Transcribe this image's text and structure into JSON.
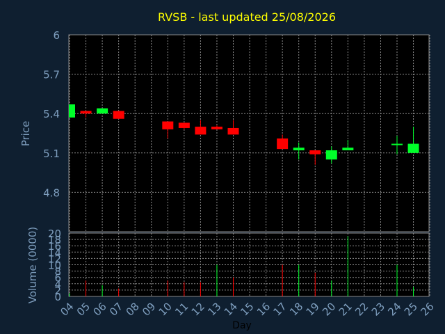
{
  "colors": {
    "background": "#0f1f30",
    "panel": "#000000",
    "grid": "#8a8a8a",
    "title": "#ffff00",
    "axis_text": "#7f9fbf",
    "up": "#00ff2a",
    "down": "#ff0000"
  },
  "chart_data": [
    {
      "type": "candlestick",
      "title": "RVSB - last updated 25/08/2026",
      "ylabel": "Price",
      "ylim": [
        4.5,
        6.0
      ],
      "yticks": [
        "6",
        "5.7",
        "5.4",
        "5.1",
        "4.8"
      ],
      "ytick_values": [
        6.0,
        5.7,
        5.4,
        5.1,
        4.8
      ],
      "grid": true,
      "x": [
        "04",
        "05",
        "06",
        "07",
        "10",
        "11",
        "12",
        "13",
        "14",
        "17",
        "18",
        "19",
        "20",
        "21",
        "24",
        "25"
      ],
      "open": [
        5.37,
        5.42,
        5.4,
        5.42,
        5.34,
        5.33,
        5.3,
        5.3,
        5.29,
        5.21,
        5.12,
        5.12,
        5.05,
        5.12,
        5.16,
        5.1
      ],
      "close": [
        5.47,
        5.4,
        5.44,
        5.36,
        5.28,
        5.29,
        5.24,
        5.28,
        5.24,
        5.13,
        5.14,
        5.09,
        5.12,
        5.14,
        5.17,
        5.17
      ],
      "high": [
        5.47,
        5.42,
        5.44,
        5.42,
        5.34,
        5.33,
        5.35,
        5.31,
        5.35,
        5.24,
        5.18,
        5.12,
        5.15,
        5.2,
        5.23,
        5.3
      ],
      "low": [
        5.37,
        5.37,
        5.4,
        5.36,
        5.21,
        5.28,
        5.24,
        5.28,
        5.24,
        5.13,
        5.05,
        5.01,
        5.02,
        5.12,
        5.09,
        5.1
      ]
    },
    {
      "type": "bar",
      "ylabel": "Volume (0000)",
      "xlabel": "Day",
      "ylim": [
        0,
        20
      ],
      "yticks": [
        "20",
        "18",
        "16",
        "14",
        "12",
        "10",
        "8",
        "6",
        "4",
        "2",
        "0"
      ],
      "ytick_values": [
        20,
        18,
        16,
        14,
        12,
        10,
        8,
        6,
        4,
        2,
        0
      ],
      "grid": true,
      "xticks": [
        "04",
        "05",
        "06",
        "07",
        "08",
        "09",
        "10",
        "11",
        "12",
        "13",
        "14",
        "15",
        "16",
        "17",
        "18",
        "19",
        "20",
        "21",
        "22",
        "23",
        "24",
        "25",
        "26"
      ],
      "x": [
        "04",
        "05",
        "06",
        "07",
        "10",
        "11",
        "12",
        "13",
        "14",
        "17",
        "18",
        "19",
        "20",
        "21",
        "24",
        "25"
      ],
      "values": [
        1.0,
        5.0,
        3.5,
        2.5,
        5.0,
        4.5,
        4.5,
        10.0,
        6.0,
        10.0,
        10.0,
        7.5,
        5.0,
        19.0,
        10.0,
        3.0
      ],
      "direction": [
        "up",
        "down",
        "up",
        "down",
        "down",
        "down",
        "down",
        "up",
        "down",
        "down",
        "up",
        "down",
        "up",
        "up",
        "up",
        "up"
      ]
    }
  ]
}
